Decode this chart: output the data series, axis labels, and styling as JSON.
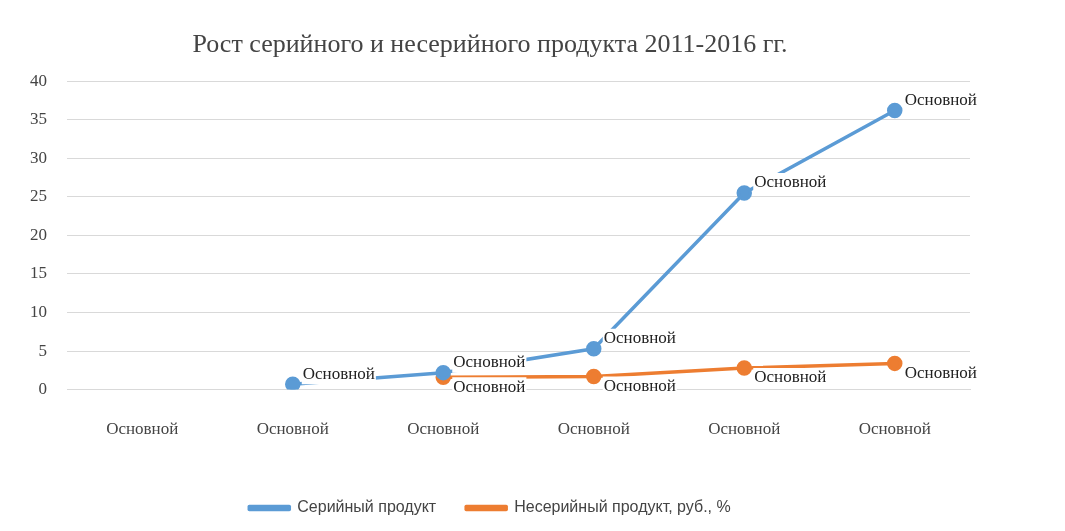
{
  "chart_data": {
    "type": "line",
    "title": "Рост серийного и несерийного продукта 2011-2016 гг.",
    "categories": [
      "Основной",
      "Основной",
      "Основной",
      "Основной",
      "Основной",
      "Основной"
    ],
    "series": [
      {
        "name": "Серийный продукт",
        "color": "#5b9bd5",
        "values": [
          null,
          0.7,
          2.2,
          5.3,
          25.5,
          36.2
        ],
        "value_labels": [
          null,
          "Основной",
          "Основной",
          "Основной",
          "Основной",
          "Основной"
        ]
      },
      {
        "name": "Несерийный продукт, руб., %",
        "color": "#ed7d31",
        "values": [
          null,
          null,
          1.6,
          1.7,
          2.8,
          3.4
        ],
        "value_labels": [
          null,
          null,
          "Основной",
          "Основной",
          "Основной",
          "Основной"
        ]
      }
    ],
    "ylim": [
      0,
      40
    ],
    "yticks": [
      0,
      5,
      10,
      15,
      20,
      25,
      30,
      35,
      40
    ],
    "grid": "y",
    "legend": "bottom",
    "marker": "circle",
    "line_style": "solid"
  }
}
